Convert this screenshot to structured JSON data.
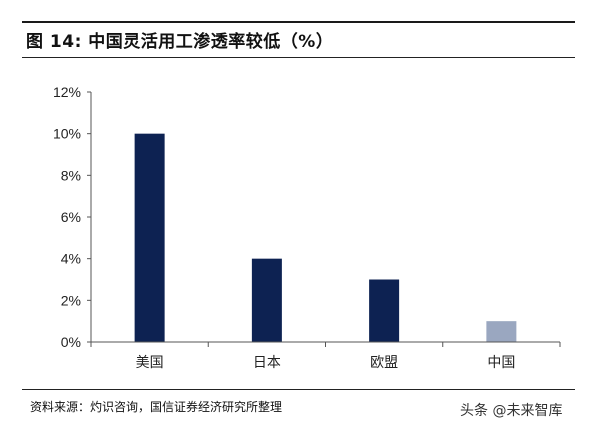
{
  "header": {
    "title": "图 14:  中国灵活用工渗透率较低（%）"
  },
  "chart_data": {
    "type": "bar",
    "categories": [
      "美国",
      "日本",
      "欧盟",
      "中国"
    ],
    "values": [
      10,
      4,
      3,
      1
    ],
    "ylim": [
      0,
      12
    ],
    "yticks": [
      0,
      2,
      4,
      6,
      8,
      10,
      12
    ],
    "ytick_labels": [
      "0%",
      "2%",
      "4%",
      "6%",
      "8%",
      "10%",
      "12%"
    ],
    "bar_colors": [
      "#0d2252",
      "#0d2252",
      "#0d2252",
      "#9aa7c0"
    ],
    "grid": false
  },
  "footer": {
    "source": "资料来源：灼识咨询，国信证券经济研究所整理",
    "watermark": "头条 @未来智库"
  }
}
